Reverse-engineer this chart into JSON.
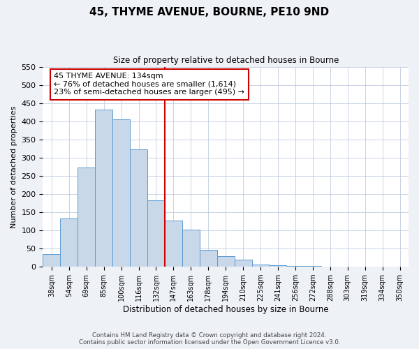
{
  "title": "45, THYME AVENUE, BOURNE, PE10 9ND",
  "subtitle": "Size of property relative to detached houses in Bourne",
  "xlabel": "Distribution of detached houses by size in Bourne",
  "ylabel": "Number of detached properties",
  "bar_labels": [
    "38sqm",
    "54sqm",
    "69sqm",
    "85sqm",
    "100sqm",
    "116sqm",
    "132sqm",
    "147sqm",
    "163sqm",
    "178sqm",
    "194sqm",
    "210sqm",
    "225sqm",
    "241sqm",
    "256sqm",
    "272sqm",
    "288sqm",
    "303sqm",
    "319sqm",
    "334sqm",
    "350sqm"
  ],
  "bar_values": [
    35,
    132,
    272,
    432,
    405,
    322,
    183,
    127,
    103,
    46,
    30,
    20,
    7,
    5,
    3,
    2,
    1,
    1,
    1,
    1,
    1
  ],
  "bar_color": "#c8d8e8",
  "bar_edge_color": "#5b9bd5",
  "vline_color": "#cc0000",
  "annotation_title": "45 THYME AVENUE: 134sqm",
  "annotation_line1": "← 76% of detached houses are smaller (1,614)",
  "annotation_line2": "23% of semi-detached houses are larger (495) →",
  "annotation_box_color": "#cc0000",
  "ylim": [
    0,
    550
  ],
  "yticks": [
    0,
    50,
    100,
    150,
    200,
    250,
    300,
    350,
    400,
    450,
    500,
    550
  ],
  "footer1": "Contains HM Land Registry data © Crown copyright and database right 2024.",
  "footer2": "Contains public sector information licensed under the Open Government Licence v3.0.",
  "bg_color": "#eef2f7",
  "plot_bg_color": "#ffffff"
}
